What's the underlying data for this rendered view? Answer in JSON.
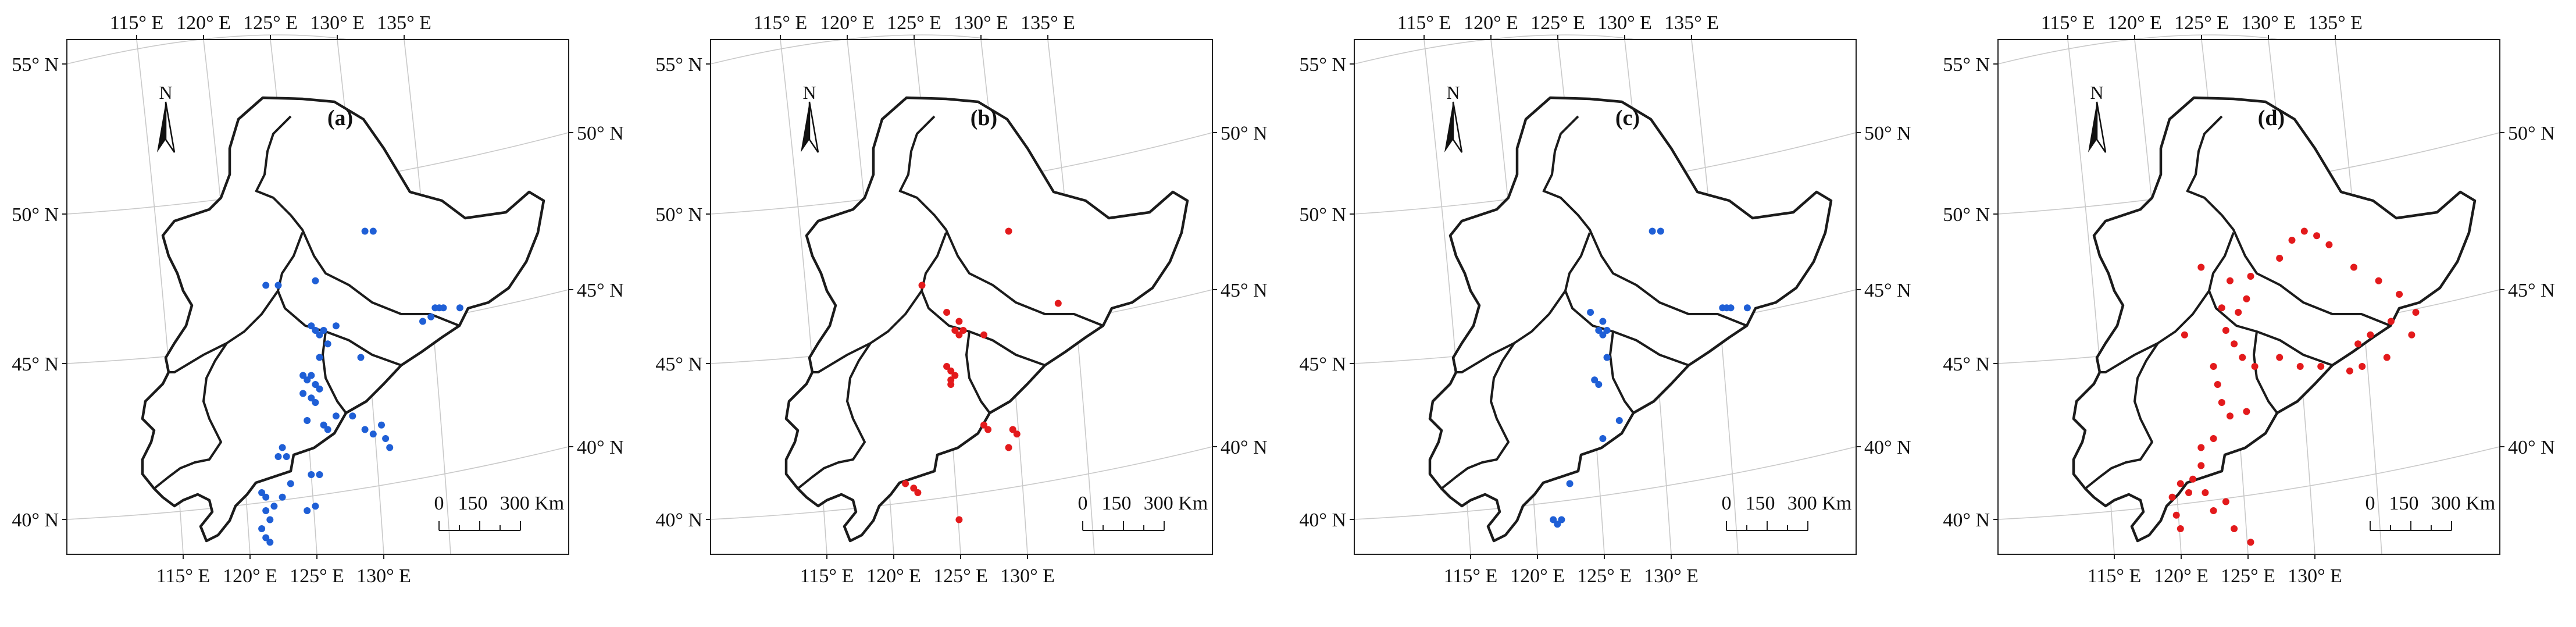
{
  "figure": {
    "top_lon_labels": [
      "115° E",
      "120° E",
      "125° E",
      "130° E",
      "135° E"
    ],
    "bottom_lon_labels": [
      "115° E",
      "120° E",
      "125° E",
      "130° E"
    ],
    "left_lat_labels": [
      "55° N",
      "50° N",
      "45° N",
      "40° N"
    ],
    "right_lat_labels": [
      "50° N",
      "45° N",
      "40° N"
    ],
    "north_label": "N",
    "scale_labels": [
      "0",
      "150",
      "300 Km"
    ]
  },
  "colors": {
    "blue": "#1f5fd6",
    "red": "#e31a1c",
    "boundary": "#1b1b1b",
    "graticule": "#c9c9c9"
  },
  "panels": [
    {
      "label": "(a)",
      "marker_color": "blue",
      "points": [
        [
          0.32,
          0.42
        ],
        [
          0.35,
          0.42
        ],
        [
          0.44,
          0.41
        ],
        [
          0.56,
          0.3
        ],
        [
          0.58,
          0.3
        ],
        [
          0.73,
          0.47
        ],
        [
          0.74,
          0.47
        ],
        [
          0.75,
          0.47
        ],
        [
          0.79,
          0.47
        ],
        [
          0.72,
          0.49
        ],
        [
          0.7,
          0.5
        ],
        [
          0.43,
          0.51
        ],
        [
          0.44,
          0.52
        ],
        [
          0.45,
          0.53
        ],
        [
          0.46,
          0.52
        ],
        [
          0.49,
          0.51
        ],
        [
          0.47,
          0.55
        ],
        [
          0.45,
          0.58
        ],
        [
          0.43,
          0.62
        ],
        [
          0.41,
          0.62
        ],
        [
          0.42,
          0.63
        ],
        [
          0.44,
          0.64
        ],
        [
          0.55,
          0.58
        ],
        [
          0.41,
          0.66
        ],
        [
          0.43,
          0.67
        ],
        [
          0.44,
          0.68
        ],
        [
          0.45,
          0.65
        ],
        [
          0.42,
          0.72
        ],
        [
          0.46,
          0.73
        ],
        [
          0.49,
          0.71
        ],
        [
          0.47,
          0.74
        ],
        [
          0.53,
          0.71
        ],
        [
          0.56,
          0.74
        ],
        [
          0.58,
          0.75
        ],
        [
          0.6,
          0.73
        ],
        [
          0.61,
          0.76
        ],
        [
          0.62,
          0.78
        ],
        [
          0.36,
          0.78
        ],
        [
          0.37,
          0.8
        ],
        [
          0.35,
          0.8
        ],
        [
          0.43,
          0.84
        ],
        [
          0.45,
          0.84
        ],
        [
          0.31,
          0.88
        ],
        [
          0.32,
          0.89
        ],
        [
          0.34,
          0.91
        ],
        [
          0.32,
          0.92
        ],
        [
          0.33,
          0.94
        ],
        [
          0.31,
          0.96
        ],
        [
          0.32,
          0.98
        ],
        [
          0.33,
          0.99
        ],
        [
          0.42,
          0.92
        ],
        [
          0.44,
          0.91
        ],
        [
          0.38,
          0.86
        ],
        [
          0.36,
          0.89
        ]
      ]
    },
    {
      "label": "(b)",
      "marker_color": "red",
      "points": [
        [
          0.35,
          0.42
        ],
        [
          0.56,
          0.3
        ],
        [
          0.41,
          0.48
        ],
        [
          0.44,
          0.5
        ],
        [
          0.43,
          0.52
        ],
        [
          0.44,
          0.53
        ],
        [
          0.45,
          0.52
        ],
        [
          0.5,
          0.53
        ],
        [
          0.41,
          0.6
        ],
        [
          0.42,
          0.61
        ],
        [
          0.43,
          0.62
        ],
        [
          0.42,
          0.63
        ],
        [
          0.42,
          0.64
        ],
        [
          0.5,
          0.73
        ],
        [
          0.51,
          0.74
        ],
        [
          0.57,
          0.74
        ],
        [
          0.58,
          0.75
        ],
        [
          0.56,
          0.78
        ],
        [
          0.31,
          0.86
        ],
        [
          0.33,
          0.87
        ],
        [
          0.34,
          0.88
        ],
        [
          0.44,
          0.94
        ],
        [
          0.68,
          0.46
        ]
      ]
    },
    {
      "label": "(c)",
      "marker_color": "blue",
      "points": [
        [
          0.56,
          0.3
        ],
        [
          0.58,
          0.3
        ],
        [
          0.73,
          0.47
        ],
        [
          0.74,
          0.47
        ],
        [
          0.75,
          0.47
        ],
        [
          0.79,
          0.47
        ],
        [
          0.41,
          0.48
        ],
        [
          0.43,
          0.52
        ],
        [
          0.44,
          0.53
        ],
        [
          0.45,
          0.52
        ],
        [
          0.44,
          0.5
        ],
        [
          0.45,
          0.58
        ],
        [
          0.42,
          0.63
        ],
        [
          0.43,
          0.64
        ],
        [
          0.48,
          0.72
        ],
        [
          0.44,
          0.76
        ],
        [
          0.36,
          0.86
        ],
        [
          0.32,
          0.94
        ],
        [
          0.33,
          0.95
        ],
        [
          0.34,
          0.94
        ]
      ]
    },
    {
      "label": "(d)",
      "marker_color": "red",
      "points": [
        [
          0.33,
          0.38
        ],
        [
          0.4,
          0.41
        ],
        [
          0.45,
          0.4
        ],
        [
          0.52,
          0.36
        ],
        [
          0.55,
          0.32
        ],
        [
          0.58,
          0.3
        ],
        [
          0.61,
          0.31
        ],
        [
          0.64,
          0.33
        ],
        [
          0.7,
          0.38
        ],
        [
          0.76,
          0.41
        ],
        [
          0.81,
          0.44
        ],
        [
          0.85,
          0.48
        ],
        [
          0.79,
          0.5
        ],
        [
          0.74,
          0.53
        ],
        [
          0.71,
          0.55
        ],
        [
          0.78,
          0.58
        ],
        [
          0.84,
          0.53
        ],
        [
          0.38,
          0.47
        ],
        [
          0.42,
          0.48
        ],
        [
          0.44,
          0.45
        ],
        [
          0.39,
          0.52
        ],
        [
          0.41,
          0.55
        ],
        [
          0.43,
          0.58
        ],
        [
          0.46,
          0.6
        ],
        [
          0.52,
          0.58
        ],
        [
          0.57,
          0.6
        ],
        [
          0.62,
          0.6
        ],
        [
          0.69,
          0.61
        ],
        [
          0.72,
          0.6
        ],
        [
          0.29,
          0.53
        ],
        [
          0.36,
          0.6
        ],
        [
          0.37,
          0.64
        ],
        [
          0.38,
          0.68
        ],
        [
          0.4,
          0.71
        ],
        [
          0.44,
          0.7
        ],
        [
          0.36,
          0.76
        ],
        [
          0.33,
          0.78
        ],
        [
          0.33,
          0.82
        ],
        [
          0.31,
          0.85
        ],
        [
          0.28,
          0.86
        ],
        [
          0.26,
          0.89
        ],
        [
          0.3,
          0.88
        ],
        [
          0.34,
          0.88
        ],
        [
          0.36,
          0.92
        ],
        [
          0.39,
          0.9
        ],
        [
          0.41,
          0.96
        ],
        [
          0.45,
          0.99
        ],
        [
          0.27,
          0.93
        ],
        [
          0.28,
          0.96
        ]
      ]
    }
  ]
}
